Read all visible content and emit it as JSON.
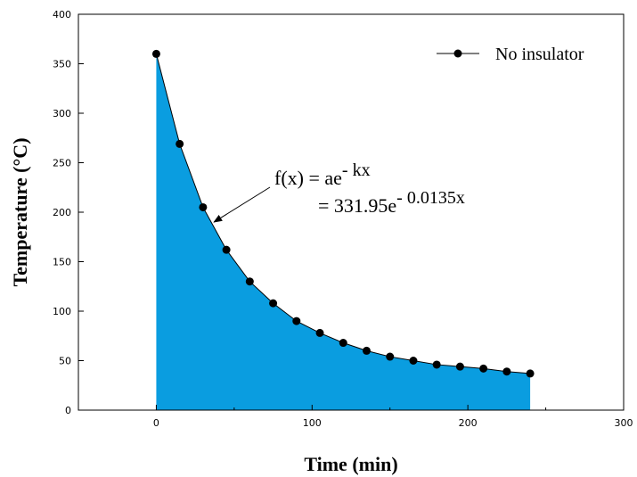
{
  "chart_data": {
    "type": "area",
    "xlabel": "Time (min)",
    "ylabel": "Temperature (°C)",
    "xlim": [
      -50,
      300
    ],
    "ylim": [
      0,
      400
    ],
    "xticks": [
      0,
      100,
      200,
      300
    ],
    "yticks": [
      0,
      50,
      100,
      150,
      200,
      250,
      300,
      350,
      400
    ],
    "grid": false,
    "legend_position": "top-right",
    "series": [
      {
        "name": "No insulator",
        "color": "#000000",
        "fill_color": "#0a9de0",
        "marker": "filled-circle",
        "x": [
          0,
          15,
          30,
          45,
          60,
          75,
          90,
          105,
          120,
          135,
          150,
          165,
          180,
          195,
          210,
          225,
          240
        ],
        "y": [
          360,
          269,
          205,
          162,
          130,
          108,
          90,
          78,
          68,
          60,
          54,
          50,
          46,
          44,
          42,
          39,
          37
        ]
      }
    ],
    "annotation": {
      "line1_prefix": "f(x) = ae",
      "line1_sup": "- kx",
      "line2_prefix": "= 331.95e",
      "line2_sup": "- 0.0135x",
      "arrow_target": {
        "x": 37,
        "y": 190
      }
    }
  }
}
